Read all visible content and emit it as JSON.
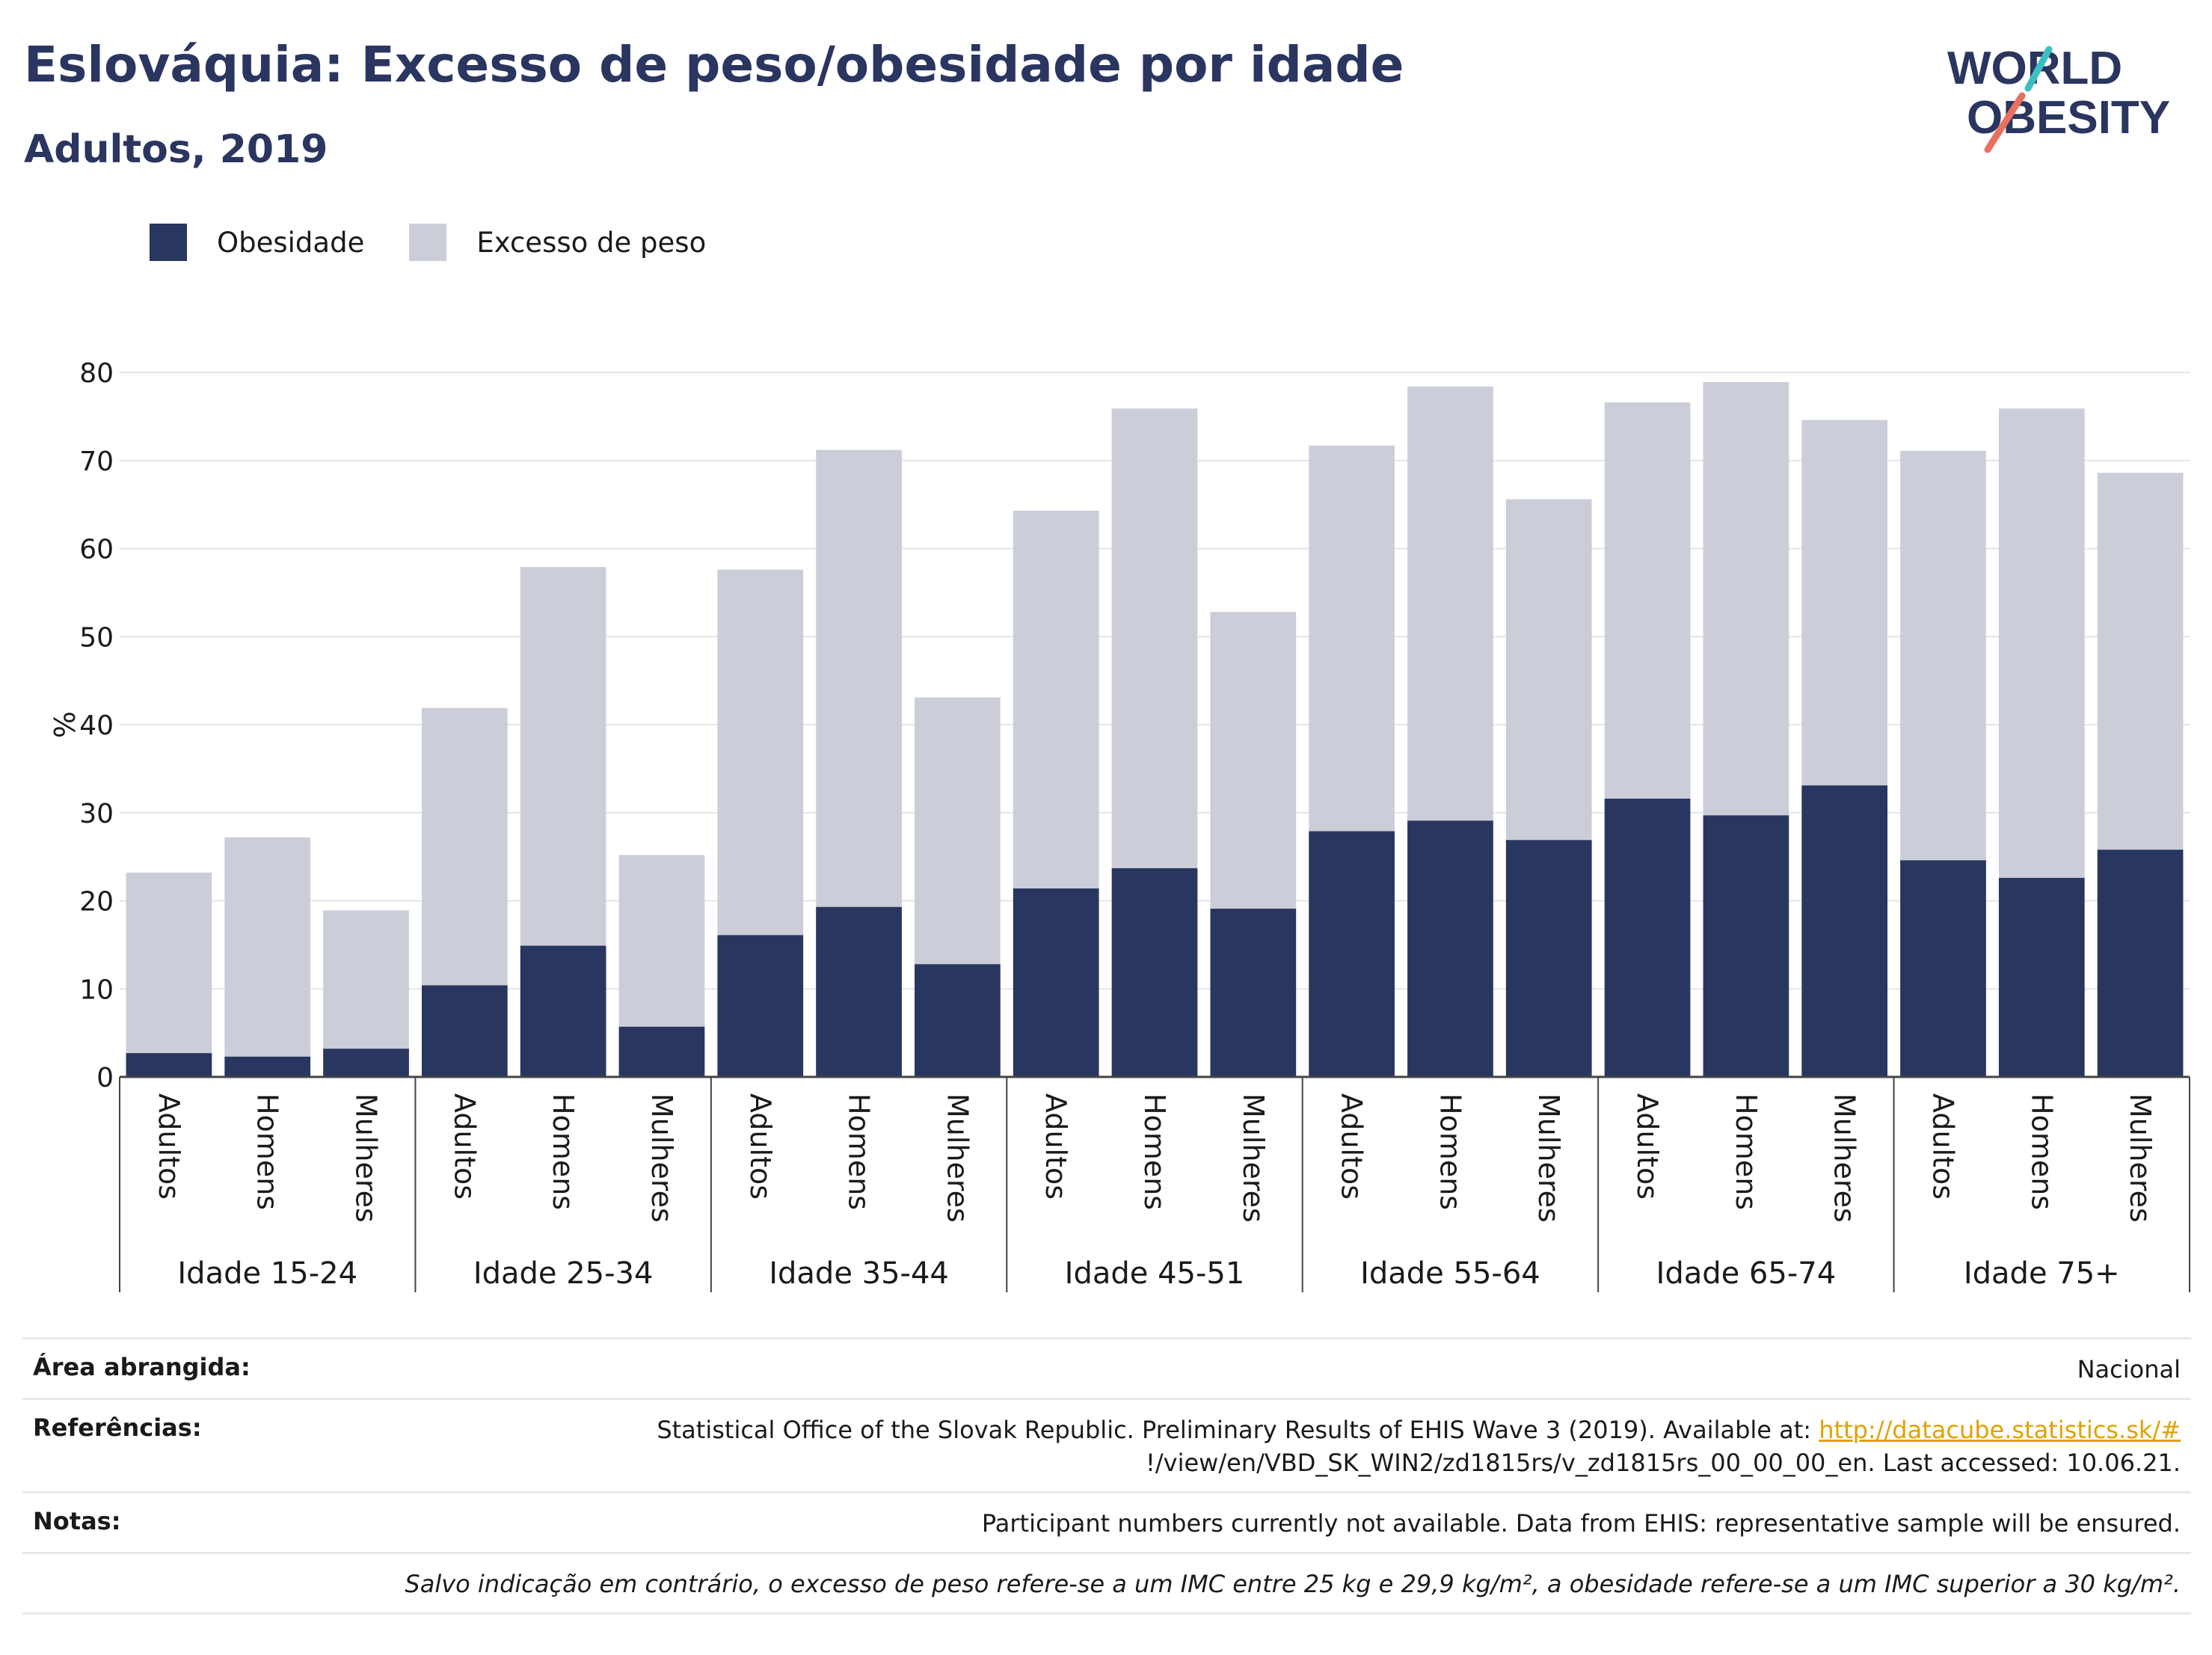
{
  "header": {
    "title": "Eslováquia: Excesso de peso/obesidade por idade",
    "subtitle": "Adultos, 2019",
    "logo_line1": "WORLD",
    "logo_line2": "OBESITY"
  },
  "colors": {
    "obesity": "#29365f",
    "overweight": "#cbcdd8",
    "title": "#2a3560",
    "grid": "#e6e6e6",
    "link": "#e0a200",
    "logo_teal": "#3bbfc1",
    "logo_coral": "#e8705f"
  },
  "legend": [
    {
      "label": "Obesidade",
      "color": "#29365f"
    },
    {
      "label": "Excesso de peso",
      "color": "#cbcdd8"
    }
  ],
  "chart_data": {
    "type": "bar",
    "stacked": false,
    "overlay": true,
    "ylabel": "%",
    "ylim": [
      0,
      80
    ],
    "yticks": [
      0,
      10,
      20,
      30,
      40,
      50,
      60,
      70,
      80
    ],
    "grid": true,
    "legend_position": "top-left",
    "groups": [
      {
        "label": "Idade 15-24",
        "categories": [
          "Adultos",
          "Homens",
          "Mulheres"
        ],
        "obesidade": [
          2.7,
          2.3,
          3.2
        ],
        "excesso_de_peso": [
          23.2,
          27.2,
          18.9
        ]
      },
      {
        "label": "Idade 25-34",
        "categories": [
          "Adultos",
          "Homens",
          "Mulheres"
        ],
        "obesidade": [
          10.4,
          14.9,
          5.7
        ],
        "excesso_de_peso": [
          41.9,
          57.9,
          25.2
        ]
      },
      {
        "label": "Idade 35-44",
        "categories": [
          "Adultos",
          "Homens",
          "Mulheres"
        ],
        "obesidade": [
          16.1,
          19.3,
          12.8
        ],
        "excesso_de_peso": [
          57.6,
          71.2,
          43.1
        ]
      },
      {
        "label": "Idade 45-51",
        "categories": [
          "Adultos",
          "Homens",
          "Mulheres"
        ],
        "obesidade": [
          21.4,
          23.7,
          19.1
        ],
        "excesso_de_peso": [
          64.3,
          75.9,
          52.8
        ]
      },
      {
        "label": "Idade 55-64",
        "categories": [
          "Adultos",
          "Homens",
          "Mulheres"
        ],
        "obesidade": [
          27.9,
          29.1,
          26.9
        ],
        "excesso_de_peso": [
          71.7,
          78.4,
          65.6
        ]
      },
      {
        "label": "Idade 65-74",
        "categories": [
          "Adultos",
          "Homens",
          "Mulheres"
        ],
        "obesidade": [
          31.6,
          29.7,
          33.1
        ],
        "excesso_de_peso": [
          76.6,
          78.9,
          74.6
        ]
      },
      {
        "label": "Idade 75+",
        "categories": [
          "Adultos",
          "Homens",
          "Mulheres"
        ],
        "obesidade": [
          24.6,
          22.6,
          25.8
        ],
        "excesso_de_peso": [
          71.1,
          75.9,
          68.6
        ]
      }
    ]
  },
  "footer": {
    "area_label": "Área abrangida:",
    "area_value": "Nacional",
    "ref_label": "Referências:",
    "ref_text1": "Statistical Office of the Slovak Republic. Preliminary Results of EHIS Wave 3 (2019). Available at: ",
    "ref_link": "http://datacube.statistics.sk/#",
    "ref_text2": "!/view/en/VBD_SK_WIN2/zd1815rs/v_zd1815rs_00_00_00_en. Last accessed: 10.06.21.",
    "notes_label": "Notas:",
    "notes_value": "Participant numbers currently not available. Data from EHIS: representative sample will be ensured.",
    "disclaimer": "Salvo indicação em contrário, o excesso de peso refere-se a um IMC entre 25 kg e 29,9 kg/m², a obesidade refere-se a um IMC superior a 30 kg/m²."
  }
}
